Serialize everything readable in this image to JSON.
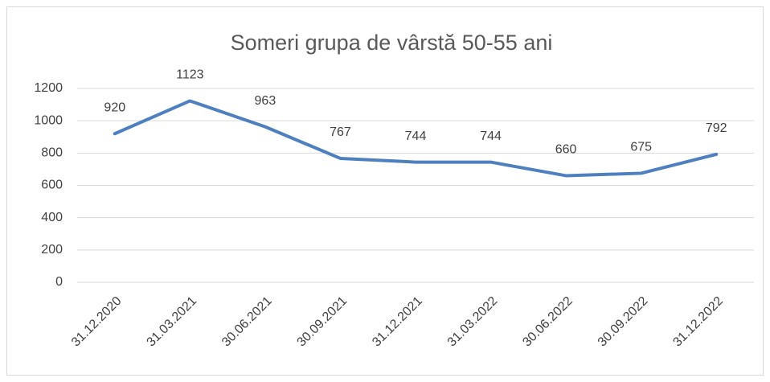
{
  "chart_data": {
    "type": "line",
    "title": "Someri grupa de vârstă  50-55 ani",
    "categories": [
      "31.12.2020",
      "31.03.2021",
      "30.06.2021",
      "30.09.2021",
      "31.12.2021",
      "31.03.2022",
      "30.06.2022",
      "30.09.2022",
      "31.12.2022"
    ],
    "values": [
      920,
      1123,
      963,
      767,
      744,
      744,
      660,
      675,
      792
    ],
    "color": "#4e7fbf",
    "ylim": [
      0,
      1200
    ],
    "yticks": [
      0,
      200,
      400,
      600,
      800,
      1000,
      1200
    ],
    "grid": true
  }
}
